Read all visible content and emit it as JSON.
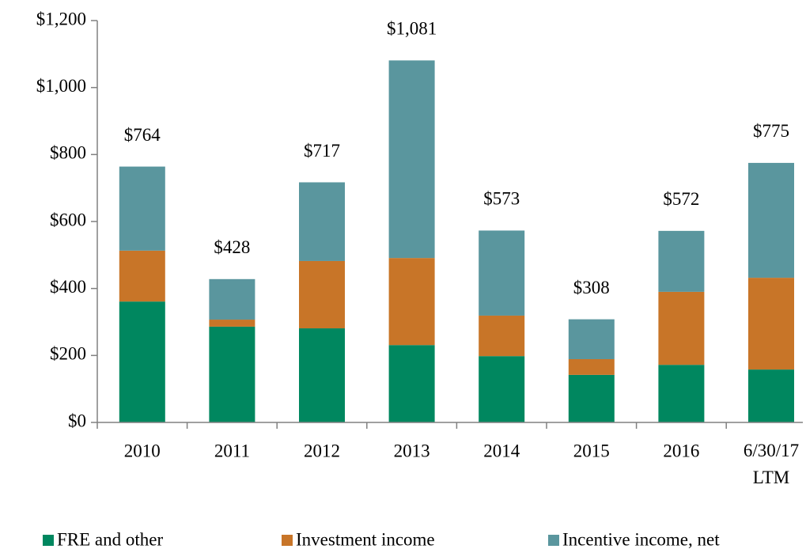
{
  "chart_data": {
    "type": "stacked_bar",
    "categories": [
      "2010",
      "2011",
      "2012",
      "2013",
      "2014",
      "2015",
      "2016",
      "6/30/17 LTM"
    ],
    "series": [
      {
        "name": "FRE and other",
        "color": "#00875f",
        "values": [
          361,
          286,
          281,
          231,
          198,
          142,
          172,
          158
        ]
      },
      {
        "name": "Investment income",
        "color": "#c87528",
        "values": [
          152,
          21,
          201,
          260,
          121,
          47,
          218,
          274
        ]
      },
      {
        "name": "Incentive income, net",
        "color": "#5a969e",
        "values": [
          251,
          121,
          235,
          590,
          254,
          119,
          182,
          343
        ]
      }
    ],
    "totals": [
      764,
      428,
      717,
      1081,
      573,
      308,
      572,
      775
    ],
    "total_labels": [
      "$764",
      "$428",
      "$717",
      "$1,081",
      "$573",
      "$308",
      "$572",
      "$775"
    ],
    "ylim": [
      0,
      1200
    ],
    "yticks": [
      {
        "value": 0,
        "label": "$0"
      },
      {
        "value": 200,
        "label": "$200"
      },
      {
        "value": 400,
        "label": "$400"
      },
      {
        "value": 600,
        "label": "$600"
      },
      {
        "value": 800,
        "label": "$800"
      },
      {
        "value": 1000,
        "label": "$1,000"
      },
      {
        "value": 1200,
        "label": "$1,200"
      }
    ],
    "legend": "bottom"
  }
}
